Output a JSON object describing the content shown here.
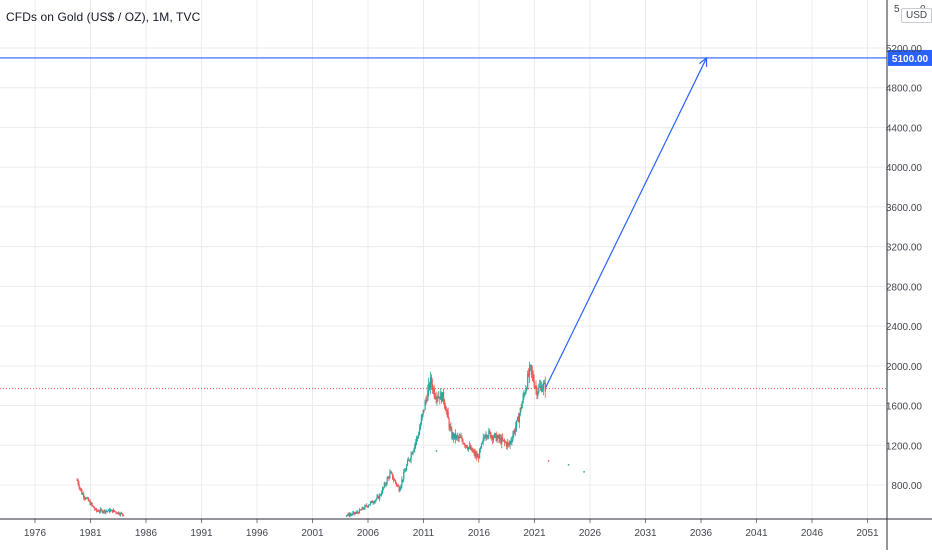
{
  "header": {
    "title": "CFDs on Gold (US$ / OZ), 1M, TVC",
    "currency": "USD",
    "corner_left": "5",
    "corner_right": "0"
  },
  "colors": {
    "up": "#26a69a",
    "down": "#ef5350",
    "grid": "#e9ecf1",
    "axis_text": "#434651",
    "drawing": "#2962ff",
    "price_line": "#ef5350"
  },
  "chart_data": {
    "type": "candlestick",
    "x_axis": {
      "ticks": [
        "1976",
        "1981",
        "1986",
        "1991",
        "1996",
        "2001",
        "2006",
        "2011",
        "2016",
        "2021",
        "2026",
        "2031",
        "2036",
        "2041",
        "2046",
        "2051"
      ]
    },
    "y_axis": {
      "range": [
        530,
        5500
      ],
      "ticks": [
        "800.00",
        "1200.00",
        "1600.00",
        "2000.00",
        "2400.00",
        "2800.00",
        "3200.00",
        "3600.00",
        "4000.00",
        "4400.00",
        "4800.00",
        "5200.00"
      ]
    },
    "horizontal_line": {
      "price": 5100,
      "label": "5100.00"
    },
    "trend_arrow": {
      "start": {
        "year": 2022.0,
        "price": 1780
      },
      "end": {
        "year": 2036.5,
        "price": 5100
      }
    },
    "last_price": 1770,
    "stray_points": [
      {
        "year": 2012.1,
        "price": 1150,
        "dir": "up"
      },
      {
        "year": 2022.2,
        "price": 1050,
        "dir": "down"
      },
      {
        "year": 2024.0,
        "price": 1010,
        "dir": "up"
      },
      {
        "year": 2025.4,
        "price": 940,
        "dir": "up"
      }
    ],
    "series_close": [
      {
        "year": 1979.8,
        "price": 850
      },
      {
        "year": 1980.2,
        "price": 720
      },
      {
        "year": 1980.8,
        "price": 640
      },
      {
        "year": 1981.5,
        "price": 540
      },
      {
        "year": 1983.0,
        "price": 540
      },
      {
        "year": 1984.0,
        "price": 500
      },
      {
        "year": 1986.0,
        "price": 500
      },
      {
        "year": 1987.7,
        "price": 575
      },
      {
        "year": 1988.5,
        "price": 520
      },
      {
        "year": 1989.5,
        "price": 500
      },
      {
        "year": 2004.3,
        "price": 500
      },
      {
        "year": 2005.0,
        "price": 520
      },
      {
        "year": 2006.0,
        "price": 600
      },
      {
        "year": 2007.0,
        "price": 680
      },
      {
        "year": 2008.0,
        "price": 920
      },
      {
        "year": 2008.8,
        "price": 760
      },
      {
        "year": 2009.5,
        "price": 1000
      },
      {
        "year": 2010.5,
        "price": 1300
      },
      {
        "year": 2011.3,
        "price": 1700
      },
      {
        "year": 2011.65,
        "price": 1850
      },
      {
        "year": 2012.0,
        "price": 1720
      },
      {
        "year": 2012.8,
        "price": 1680
      },
      {
        "year": 2013.5,
        "price": 1300
      },
      {
        "year": 2014.5,
        "price": 1250
      },
      {
        "year": 2015.9,
        "price": 1070
      },
      {
        "year": 2016.6,
        "price": 1330
      },
      {
        "year": 2017.5,
        "price": 1280
      },
      {
        "year": 2018.7,
        "price": 1200
      },
      {
        "year": 2019.5,
        "price": 1450
      },
      {
        "year": 2020.6,
        "price": 1970
      },
      {
        "year": 2021.2,
        "price": 1750
      },
      {
        "year": 2021.7,
        "price": 1800
      },
      {
        "year": 2022.0,
        "price": 1780
      }
    ]
  }
}
